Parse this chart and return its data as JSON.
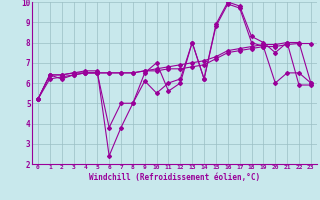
{
  "xlabel": "Windchill (Refroidissement éolien,°C)",
  "ylabel": "",
  "xlim": [
    -0.5,
    23.5
  ],
  "ylim": [
    2,
    10
  ],
  "xticks": [
    0,
    1,
    2,
    3,
    4,
    5,
    6,
    7,
    8,
    9,
    10,
    11,
    12,
    13,
    14,
    15,
    16,
    17,
    18,
    19,
    20,
    21,
    22,
    23
  ],
  "yticks": [
    2,
    3,
    4,
    5,
    6,
    7,
    8,
    9,
    10
  ],
  "bg_color": "#c8e8ec",
  "line_color": "#990099",
  "grid_color": "#9bbfc4",
  "series": [
    [
      5.2,
      6.4,
      6.2,
      6.4,
      6.5,
      6.5,
      3.8,
      5.0,
      5.0,
      6.1,
      5.5,
      6.0,
      6.2,
      8.0,
      6.2,
      8.9,
      10.0,
      9.8,
      8.3,
      8.0,
      7.5,
      8.0,
      5.9,
      5.9
    ],
    [
      5.2,
      6.4,
      6.4,
      6.5,
      6.5,
      6.5,
      6.5,
      6.5,
      6.5,
      6.6,
      6.6,
      6.7,
      6.7,
      6.8,
      6.9,
      7.2,
      7.5,
      7.6,
      7.7,
      7.8,
      7.8,
      7.9,
      7.95,
      7.95
    ],
    [
      5.2,
      6.2,
      6.3,
      6.4,
      6.5,
      6.5,
      6.5,
      6.5,
      6.5,
      6.6,
      6.7,
      6.8,
      6.9,
      7.0,
      7.1,
      7.3,
      7.6,
      7.7,
      7.8,
      7.9,
      7.9,
      8.0,
      8.0,
      6.0
    ],
    [
      5.2,
      6.4,
      6.4,
      6.5,
      6.6,
      6.6,
      2.4,
      3.8,
      5.0,
      6.5,
      7.0,
      5.6,
      6.0,
      8.0,
      6.2,
      8.8,
      9.9,
      9.7,
      8.0,
      7.8,
      6.0,
      6.5,
      6.5,
      6.0
    ]
  ]
}
